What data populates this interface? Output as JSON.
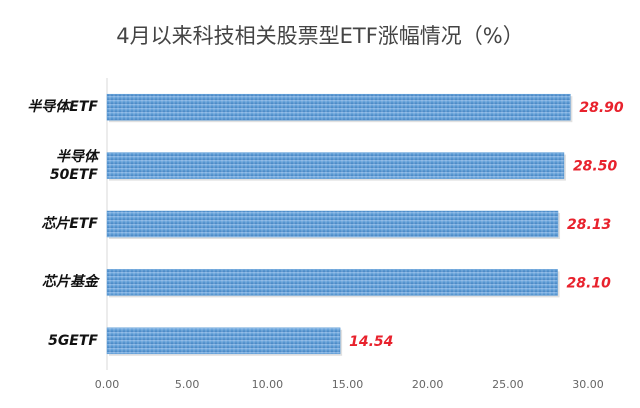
{
  "chart_data": {
    "type": "bar",
    "orientation": "horizontal",
    "title": "4月以来科技相关股票型ETF涨幅情况（%）",
    "categories": [
      "半导体ETF",
      "半导体\n50ETF",
      "芯片ETF",
      "芯片基金",
      "5GETF"
    ],
    "values": [
      28.9,
      28.5,
      28.13,
      28.1,
      14.54
    ],
    "value_labels": [
      "28.90",
      "28.50",
      "28.13",
      "28.10",
      "14.54"
    ],
    "color": "#5b9bd5",
    "xlim": [
      0,
      30
    ],
    "xticks": [
      {
        "value": 0,
        "label": "0.00"
      },
      {
        "value": 5,
        "label": "5.00"
      },
      {
        "value": 10,
        "label": "10.00"
      },
      {
        "value": 15,
        "label": "15.00"
      },
      {
        "value": 20,
        "label": "20.00"
      },
      {
        "value": 25,
        "label": "25.00"
      },
      {
        "value": 30,
        "label": "30.00"
      }
    ],
    "grid": false
  }
}
